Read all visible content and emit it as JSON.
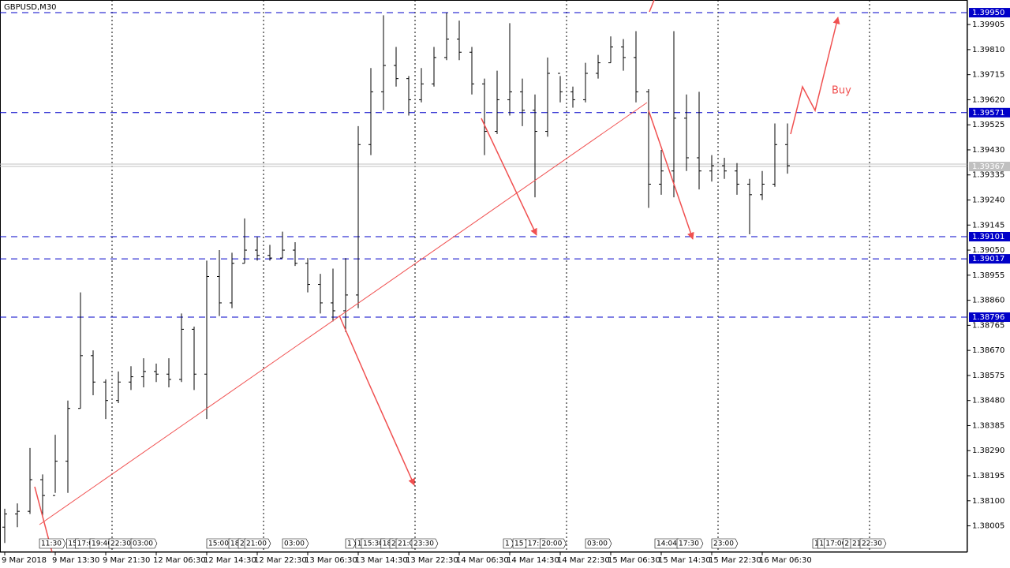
{
  "chart_data": {
    "type": "ohlc",
    "title": "GBPUSD,M30",
    "open": [
      1.38,
      1.3805,
      1.3806,
      1.3818,
      1.3812,
      1.3825,
      1.3845,
      1.3865,
      1.3855,
      1.3848,
      1.3855,
      1.3857,
      1.3859,
      1.3858,
      1.3856,
      1.3875,
      1.3858,
      1.3895,
      1.3885,
      1.39,
      1.3905,
      1.3903,
      1.3902,
      1.3905,
      1.39,
      1.3892,
      1.3885,
      1.3882,
      1.3888,
      1.3945,
      1.3965,
      1.3975,
      1.397,
      1.3962,
      1.3968,
      1.3978,
      1.3985,
      1.398,
      1.3968,
      1.395,
      1.3962,
      1.3965,
      1.3958,
      1.395,
      1.3972,
      1.3965,
      1.3962,
      1.3972,
      1.3976,
      1.3982,
      1.3978,
      1.3965,
      1.393,
      1.3935,
      1.3955,
      1.394,
      1.3935,
      1.3937,
      1.3935,
      1.393,
      1.3926,
      1.393,
      1.3945
    ],
    "high": [
      1.3807,
      1.3809,
      1.383,
      1.382,
      1.3835,
      1.3848,
      1.3889,
      1.3867,
      1.3856,
      1.3859,
      1.3861,
      1.3864,
      1.3862,
      1.3864,
      1.3881,
      1.3876,
      1.3901,
      1.3905,
      1.3904,
      1.3917,
      1.391,
      1.3907,
      1.3912,
      1.3908,
      1.3902,
      1.3896,
      1.3898,
      1.3902,
      1.3952,
      1.3974,
      1.3994,
      1.3982,
      1.3971,
      1.3974,
      1.3982,
      1.3995,
      1.3992,
      1.3982,
      1.397,
      1.3973,
      1.3991,
      1.397,
      1.3964,
      1.3978,
      1.3971,
      1.3967,
      1.3976,
      1.3979,
      1.3986,
      1.3985,
      1.3988,
      1.3966,
      1.3943,
      1.3988,
      1.3964,
      1.3965,
      1.3941,
      1.394,
      1.3938,
      1.3932,
      1.3935,
      1.3953,
      1.3953
    ],
    "low": [
      1.3794,
      1.38,
      1.3805,
      1.3804,
      1.3813,
      1.3813,
      1.3845,
      1.385,
      1.3841,
      1.3847,
      1.3852,
      1.3853,
      1.3855,
      1.3853,
      1.3855,
      1.3852,
      1.3841,
      1.388,
      1.3883,
      1.39,
      1.3901,
      1.3901,
      1.3902,
      1.3899,
      1.3889,
      1.3881,
      1.3878,
      1.3874,
      1.3883,
      1.3941,
      1.3958,
      1.3967,
      1.3956,
      1.3961,
      1.3967,
      1.3977,
      1.3977,
      1.3964,
      1.3941,
      1.3949,
      1.3956,
      1.3952,
      1.3925,
      1.3948,
      1.3961,
      1.3959,
      1.3961,
      1.397,
      1.3976,
      1.3973,
      1.3961,
      1.3921,
      1.3926,
      1.3925,
      1.3935,
      1.3928,
      1.3931,
      1.3932,
      1.3926,
      1.3911,
      1.3924,
      1.3929,
      1.3934
    ],
    "close": [
      1.3805,
      1.3806,
      1.3818,
      1.3812,
      1.3825,
      1.3845,
      1.3865,
      1.3855,
      1.3848,
      1.3855,
      1.3857,
      1.3859,
      1.3858,
      1.3856,
      1.3875,
      1.3858,
      1.3895,
      1.3885,
      1.39,
      1.3905,
      1.3903,
      1.3902,
      1.3905,
      1.39,
      1.3892,
      1.3885,
      1.3882,
      1.3888,
      1.3945,
      1.3965,
      1.3975,
      1.397,
      1.3962,
      1.3968,
      1.3978,
      1.3985,
      1.398,
      1.3968,
      1.395,
      1.3962,
      1.3965,
      1.3958,
      1.395,
      1.3972,
      1.3965,
      1.3962,
      1.3972,
      1.3976,
      1.3982,
      1.3978,
      1.3965,
      1.393,
      1.3935,
      1.3955,
      1.394,
      1.3935,
      1.3937,
      1.3935,
      1.393,
      1.3926,
      1.393,
      1.3945,
      1.3937
    ],
    "color": "#000000",
    "xlim": [
      -0.375,
      76.25
    ],
    "ylim": [
      1.37905,
      1.39998
    ],
    "yticks": [
      1.39905,
      {
        "value": 1.3981,
        "label": "1.39810"
      },
      1.39715,
      {
        "value": 1.3962,
        "label": "1.39620"
      },
      1.39525,
      {
        "value": 1.3943,
        "label": "1.39430"
      },
      1.39335,
      {
        "value": 1.3924,
        "label": "1.39240"
      },
      1.39145,
      {
        "value": 1.3905,
        "label": "1.39050"
      },
      1.38955,
      {
        "value": 1.3886,
        "label": "1.38860"
      },
      1.38765,
      {
        "value": 1.3867,
        "label": "1.38670"
      },
      1.38575,
      {
        "value": 1.3848,
        "label": "1.38480"
      },
      1.38385,
      {
        "value": 1.3829,
        "label": "1.38290"
      },
      1.38195,
      {
        "value": 1.381,
        "label": "1.38100"
      },
      1.38005
    ],
    "xticks": [
      {
        "value": 0,
        "label": "9 Mar 2018"
      },
      {
        "value": 4,
        "label": "9 Mar 13:30"
      },
      {
        "value": 8,
        "label": "9 Mar 21:30"
      },
      {
        "value": 12,
        "label": "12 Mar 06:30"
      },
      {
        "value": 16,
        "label": "12 Mar 14:30"
      },
      {
        "value": 20,
        "label": "12 Mar 22:30"
      },
      {
        "value": 24,
        "label": "13 Mar 06:30"
      },
      {
        "value": 28,
        "label": "13 Mar 14:30"
      },
      {
        "value": 32,
        "label": "13 Mar 22:30"
      },
      {
        "value": 36,
        "label": "14 Mar 06:30"
      },
      {
        "value": 40,
        "label": "14 Mar 14:30"
      },
      {
        "value": 44,
        "label": "14 Mar 22:30"
      },
      {
        "value": 48,
        "label": "15 Mar 06:30"
      },
      {
        "value": 52,
        "label": "15 Mar 14:30"
      },
      {
        "value": 56,
        "label": "15 Mar 22:30"
      },
      {
        "value": 60,
        "label": "16 Mar 06:30"
      }
    ],
    "xgrid": [
      8.5,
      20.5,
      32.5,
      44.5,
      56.5,
      68.5
    ],
    "levels": [
      {
        "value": 1.3995,
        "label": "1.39950"
      },
      {
        "value": 1.39571,
        "label": "1.39571"
      },
      {
        "value": 1.39101,
        "label": "1.39101"
      },
      {
        "value": 1.39017,
        "label": "1.39017"
      },
      {
        "value": 1.38796,
        "label": "1.38796"
      }
    ],
    "level_color": "#0000c8",
    "current_price": {
      "value": 1.39367,
      "label": "1.39367"
    },
    "events": [
      {
        "value": 2.75,
        "label": "11:30"
      },
      {
        "value": 4.9,
        "label": "15"
      },
      {
        "value": 5.6,
        "label": "17:0"
      },
      {
        "value": 6.75,
        "label": "19:40"
      },
      {
        "value": 8.25,
        "label": "22:30"
      },
      {
        "value": 10,
        "label": "03:00"
      },
      {
        "value": 16,
        "label": "15:00"
      },
      {
        "value": 17.75,
        "label": "18"
      },
      {
        "value": 18.5,
        "label": "2"
      },
      {
        "value": 19,
        "label": "21:00"
      },
      {
        "value": 22,
        "label": "03:00"
      },
      {
        "value": 27,
        "label": "1"
      },
      {
        "value": 27.8,
        "label": "1"
      },
      {
        "value": 28.25,
        "label": "15:30"
      },
      {
        "value": 29.8,
        "label": "18"
      },
      {
        "value": 30.5,
        "label": "2"
      },
      {
        "value": 31,
        "label": "21:0"
      },
      {
        "value": 32.25,
        "label": "23:30"
      },
      {
        "value": 39.5,
        "label": "1"
      },
      {
        "value": 40.25,
        "label": "15"
      },
      {
        "value": 41.3,
        "label": "17:3"
      },
      {
        "value": 42.4,
        "label": "20:00"
      },
      {
        "value": 46,
        "label": "03:00"
      },
      {
        "value": 51.5,
        "label": "14:04"
      },
      {
        "value": 53.25,
        "label": "17:30"
      },
      {
        "value": 56,
        "label": "23:00"
      },
      {
        "value": 64,
        "label": "1"
      },
      {
        "value": 64.4,
        "label": "1"
      },
      {
        "value": 64.9,
        "label": "17:00"
      },
      {
        "value": 66.4,
        "label": "2"
      },
      {
        "value": 67,
        "label": "21"
      },
      {
        "value": 67.75,
        "label": "22:30"
      }
    ],
    "annotation": "Buy"
  }
}
